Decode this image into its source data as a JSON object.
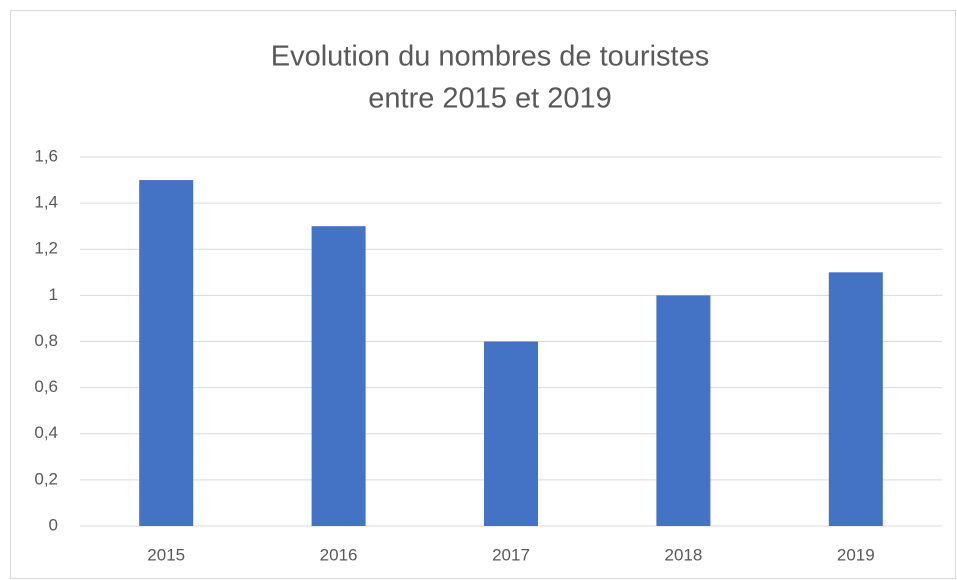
{
  "chart_data": {
    "type": "bar",
    "title": [
      "Evolution du nombres de touristes",
      "entre 2015 et 2019"
    ],
    "categories": [
      "2015",
      "2016",
      "2017",
      "2018",
      "2019"
    ],
    "values": [
      1.5,
      1.3,
      0.8,
      1,
      1.1
    ],
    "color": "#4472c4",
    "ylim": [
      0,
      1.6
    ],
    "yticks": [
      0,
      {
        "value": 0.2,
        "label": "0,2"
      },
      {
        "value": 0.4,
        "label": "0,4"
      },
      {
        "value": 0.6,
        "label": "0,6"
      },
      {
        "value": 0.8,
        "label": "0,8"
      },
      1,
      {
        "value": 1.2,
        "label": "1,2"
      },
      {
        "value": 1.4,
        "label": "1,4"
      },
      {
        "value": 1.6,
        "label": "1,6"
      }
    ],
    "grid": true
  }
}
